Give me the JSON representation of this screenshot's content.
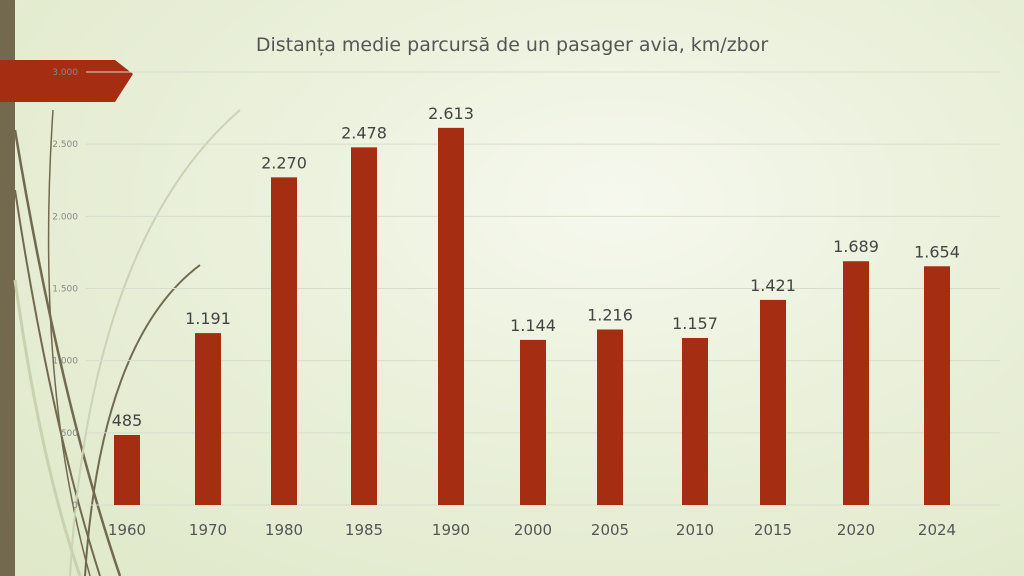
{
  "chart_data": {
    "type": "bar",
    "title": "Distanța medie parcursă de un pasager avia, km/zbor",
    "xlabel": "",
    "ylabel": "",
    "categories": [
      "1960",
      "1970",
      "1980",
      "1985",
      "1990",
      "2000",
      "2005",
      "2010",
      "2015",
      "2020",
      "2024"
    ],
    "values": [
      485,
      1191,
      2270,
      2478,
      2613,
      1144,
      1216,
      1157,
      1421,
      1689,
      1654
    ],
    "data_labels": [
      "485",
      "1.191",
      "2.270",
      "2.478",
      "2.613",
      "1.144",
      "1.216",
      "1.157",
      "1.421",
      "1.689",
      "1.654"
    ],
    "ylim": [
      0,
      3000
    ],
    "yticks": [
      0,
      500,
      1000,
      1500,
      2000,
      2500,
      3000
    ],
    "ytick_labels": [
      "0",
      "500",
      "1.000",
      "1.500",
      "2.000",
      "2.500",
      "3.000"
    ],
    "grid": true,
    "legend": "none",
    "colors": {
      "bar": "#a52d12",
      "grid": "#d8dccb",
      "accent": "#a52d12",
      "sidebar": "#72694f"
    }
  }
}
